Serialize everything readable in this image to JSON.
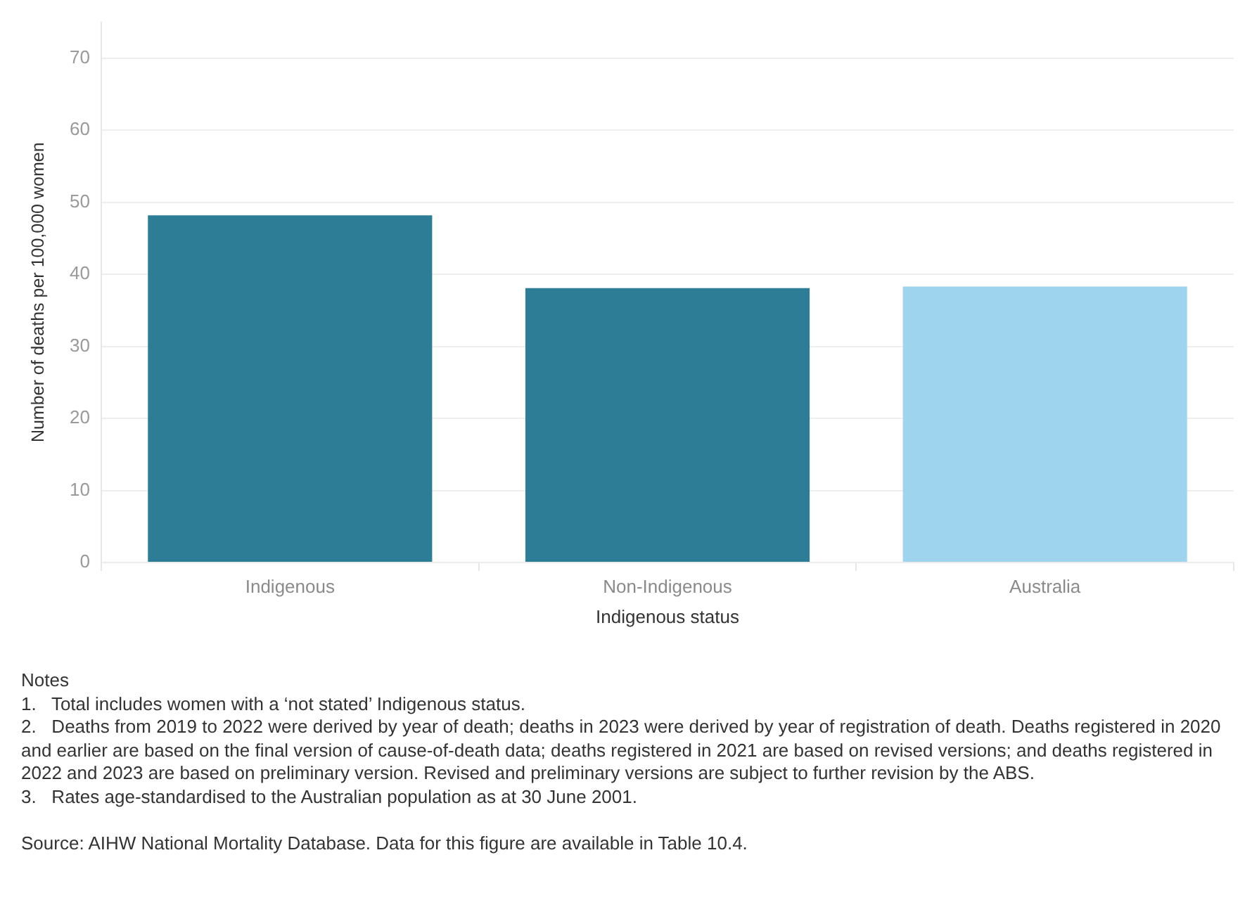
{
  "chart_data": {
    "type": "bar",
    "categories": [
      "Indigenous",
      "Non-Indigenous",
      "Australia"
    ],
    "values": [
      48.2,
      38.1,
      38.3
    ],
    "colors": [
      "#2e7d97",
      "#2e7d97",
      "#9fd4ee"
    ],
    "xlabel": "Indigenous status",
    "ylabel": "Number of deaths per 100,000 women",
    "ylim": [
      0,
      75
    ],
    "yticks": [
      0,
      10,
      20,
      30,
      40,
      50,
      60,
      70
    ],
    "grid": "y",
    "annotations": [
      "Notes",
      "1.   Total includes women with a ‘not stated’ Indigenous status.",
      "2.   Deaths from 2019 to 2022 were derived by year of death; deaths in 2023 were derived by year of registration of death. Deaths registered in 2020 and earlier are based on the final version of cause-of-death data; deaths registered in 2021 are based on revised versions; and deaths registered in 2022 and 2023 are based on preliminary version. Revised and preliminary versions are subject to further revision by the ABS.",
      "3.   Rates age-standardised to the Australian population as at 30 June 2001.",
      "Source: AIHW National Mortality Database. Data for this figure are available in Table 10.4."
    ]
  }
}
